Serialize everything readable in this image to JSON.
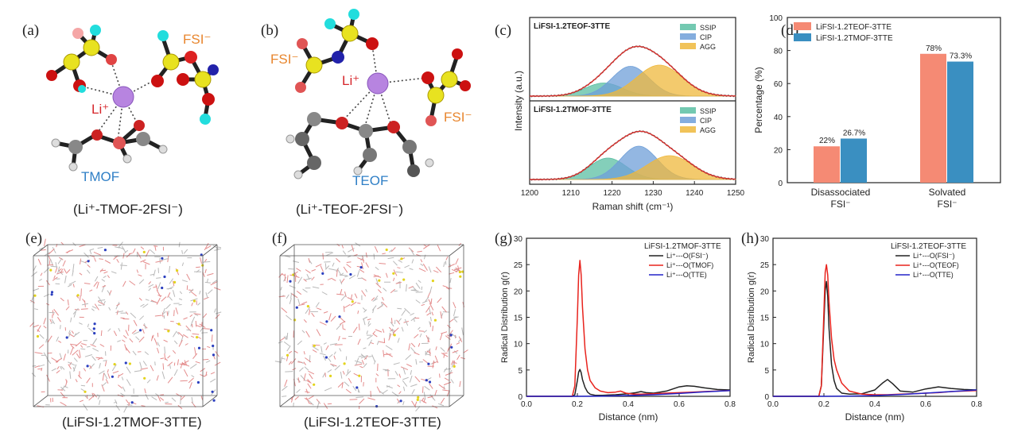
{
  "panels": {
    "a": {
      "label": "(a)",
      "caption": "(Li⁺-TMOF-2FSI⁻)",
      "li_label": "Li⁺",
      "anion_label": "FSI⁻",
      "solvent_label": "TMOF"
    },
    "b": {
      "label": "(b)",
      "caption": "(Li⁺-TEOF-2FSI⁻)",
      "li_label": "Li⁺",
      "anion_label_left": "FSI⁻",
      "anion_label_right": "FSI⁻",
      "solvent_label": "TEOF"
    },
    "c": {
      "label": "(c)"
    },
    "d": {
      "label": "(d)"
    },
    "e": {
      "label": "(e)",
      "caption": "(LiFSI-1.2TMOF-3TTE)"
    },
    "f": {
      "label": "(f)",
      "caption": "(LiFSI-1.2TEOF-3TTE)"
    },
    "g": {
      "label": "(g)"
    },
    "h": {
      "label": "(h)"
    }
  },
  "colors": {
    "ssip": "#5bbfa3",
    "cip": "#6f9fd8",
    "agg": "#efb83c",
    "fit": "#d9322e",
    "bar_teof": "#f58a74",
    "bar_tmof": "#3a8fc1",
    "rdf_fsi": "#222222",
    "rdf_solvent": "#e8231d",
    "rdf_tte": "#2323c8"
  },
  "chart_data": [
    {
      "id": "c",
      "type": "area",
      "xlabel": "Raman shift (cm⁻¹)",
      "ylabel": "Intensity (a.u.)",
      "xlim": [
        1200,
        1250
      ],
      "xticks": [
        1200,
        1210,
        1220,
        1230,
        1240,
        1250
      ],
      "subplots": [
        {
          "title": "LiFSI-1.2TEOF-3TTE",
          "legend": [
            "SSIP",
            "CIP",
            "AGG"
          ],
          "components": [
            {
              "name": "SSIP",
              "center": 1218,
              "height": 0.22,
              "width": 4.5
            },
            {
              "name": "CIP",
              "center": 1224.5,
              "height": 0.5,
              "width": 4.5
            },
            {
              "name": "AGG",
              "center": 1231.5,
              "height": 0.52,
              "width": 5.5
            }
          ]
        },
        {
          "title": "LiFSI-1.2TMOF-3TTE",
          "legend": [
            "SSIP",
            "CIP",
            "AGG"
          ],
          "components": [
            {
              "name": "SSIP",
              "center": 1219,
              "height": 0.36,
              "width": 4.5
            },
            {
              "name": "CIP",
              "center": 1226.5,
              "height": 0.56,
              "width": 4.5
            },
            {
              "name": "AGG",
              "center": 1234,
              "height": 0.4,
              "width": 5.5
            }
          ]
        }
      ]
    },
    {
      "id": "d",
      "type": "bar",
      "ylabel": "Percentage (%)",
      "ylim": [
        0,
        100
      ],
      "yticks": [
        0,
        20,
        40,
        60,
        80,
        100
      ],
      "legend_position": "top-left",
      "categories": [
        {
          "line1": "Disassociated",
          "line2": "FSI⁻"
        },
        {
          "line1": "Solvated",
          "line2": "FSI⁻"
        }
      ],
      "series": [
        {
          "name": "LiFSI-1.2TEOF-3TTE",
          "values": [
            22,
            78
          ],
          "labels": [
            "22%",
            "78%"
          ]
        },
        {
          "name": "LiFSI-1.2TMOF-3TTE",
          "values": [
            26.7,
            73.3
          ],
          "labels": [
            "26.7%",
            "73.3%"
          ]
        }
      ]
    },
    {
      "id": "g",
      "type": "line",
      "title": "LiFSI-1.2TMOF-3TTE",
      "xlabel": "Distance (nm)",
      "ylabel": "Radical Distribution g(r)",
      "xlim": [
        0,
        0.8
      ],
      "ylim": [
        0,
        30
      ],
      "xticks": [
        0.0,
        0.2,
        0.4,
        0.6,
        0.8
      ],
      "yticks": [
        0,
        5,
        10,
        15,
        20,
        25,
        30
      ],
      "legend_position": "top-right",
      "series": [
        {
          "name": "Li⁺---O(FSI⁻)",
          "x": [
            0,
            0.18,
            0.19,
            0.2,
            0.205,
            0.21,
            0.215,
            0.22,
            0.23,
            0.24,
            0.25,
            0.27,
            0.3,
            0.35,
            0.4,
            0.43,
            0.45,
            0.47,
            0.5,
            0.55,
            0.6,
            0.63,
            0.66,
            0.7,
            0.75,
            0.8
          ],
          "y": [
            0,
            0,
            0.3,
            3.0,
            4.6,
            5.1,
            4.5,
            3.2,
            1.7,
            0.8,
            0.4,
            0.2,
            0.2,
            0.3,
            0.5,
            0.7,
            0.9,
            0.7,
            0.6,
            1.0,
            1.8,
            2.0,
            1.9,
            1.6,
            1.3,
            1.2
          ]
        },
        {
          "name": "Li⁺---O(TMOF)",
          "x": [
            0,
            0.18,
            0.19,
            0.2,
            0.205,
            0.21,
            0.215,
            0.22,
            0.23,
            0.24,
            0.25,
            0.27,
            0.29,
            0.32,
            0.35,
            0.37,
            0.39,
            0.42,
            0.45,
            0.5,
            0.55,
            0.6,
            0.65,
            0.7,
            0.75,
            0.8
          ],
          "y": [
            0,
            0,
            2.0,
            15.0,
            23.0,
            25.8,
            23.0,
            17.0,
            9.0,
            5.0,
            3.0,
            1.6,
            1.0,
            0.7,
            0.8,
            1.0,
            0.6,
            0.4,
            0.4,
            0.5,
            0.6,
            0.7,
            0.8,
            0.9,
            1.0,
            1.1
          ]
        },
        {
          "name": "Li⁺---O(TTE)",
          "x": [
            0,
            0.2,
            0.3,
            0.4,
            0.5,
            0.6,
            0.7,
            0.8
          ],
          "y": [
            0,
            0,
            0.05,
            0.15,
            0.3,
            0.55,
            0.85,
            1.1
          ]
        }
      ]
    },
    {
      "id": "h",
      "type": "line",
      "title": "LiFSI-1.2TEOF-3TTE",
      "xlabel": "Distance (nm)",
      "ylabel": "Radical Distribution g(r)",
      "xlim": [
        0,
        0.8
      ],
      "ylim": [
        0,
        30
      ],
      "xticks": [
        0.0,
        0.2,
        0.4,
        0.6,
        0.8
      ],
      "yticks": [
        0,
        5,
        10,
        15,
        20,
        25,
        30
      ],
      "legend_position": "top-right",
      "series": [
        {
          "name": "Li⁺---O(FSI⁻)",
          "x": [
            0,
            0.18,
            0.19,
            0.2,
            0.205,
            0.21,
            0.215,
            0.22,
            0.23,
            0.24,
            0.25,
            0.27,
            0.3,
            0.35,
            0.4,
            0.43,
            0.45,
            0.47,
            0.5,
            0.55,
            0.6,
            0.65,
            0.7,
            0.75,
            0.8
          ],
          "y": [
            0,
            0,
            2.0,
            14.0,
            20.0,
            21.8,
            19.0,
            13.0,
            6.0,
            3.0,
            1.5,
            0.6,
            0.4,
            0.5,
            1.2,
            2.5,
            3.2,
            2.4,
            1.0,
            0.8,
            1.4,
            1.8,
            1.5,
            1.3,
            1.2
          ]
        },
        {
          "name": "Li⁺---O(TEOF)",
          "x": [
            0,
            0.18,
            0.19,
            0.2,
            0.205,
            0.21,
            0.215,
            0.22,
            0.23,
            0.24,
            0.25,
            0.27,
            0.3,
            0.35,
            0.4,
            0.45,
            0.5,
            0.55,
            0.6,
            0.65,
            0.7,
            0.75,
            0.8
          ],
          "y": [
            0,
            0,
            2.0,
            16.0,
            23.5,
            25.0,
            23.0,
            18.0,
            11.0,
            7.0,
            5.0,
            2.5,
            1.0,
            0.4,
            0.3,
            0.3,
            0.4,
            0.5,
            0.6,
            0.7,
            0.9,
            1.0,
            1.1
          ]
        },
        {
          "name": "Li⁺---O(TTE)",
          "x": [
            0,
            0.2,
            0.3,
            0.4,
            0.5,
            0.6,
            0.7,
            0.8
          ],
          "y": [
            0,
            0,
            0.05,
            0.15,
            0.35,
            0.6,
            0.9,
            1.2
          ]
        }
      ]
    }
  ]
}
